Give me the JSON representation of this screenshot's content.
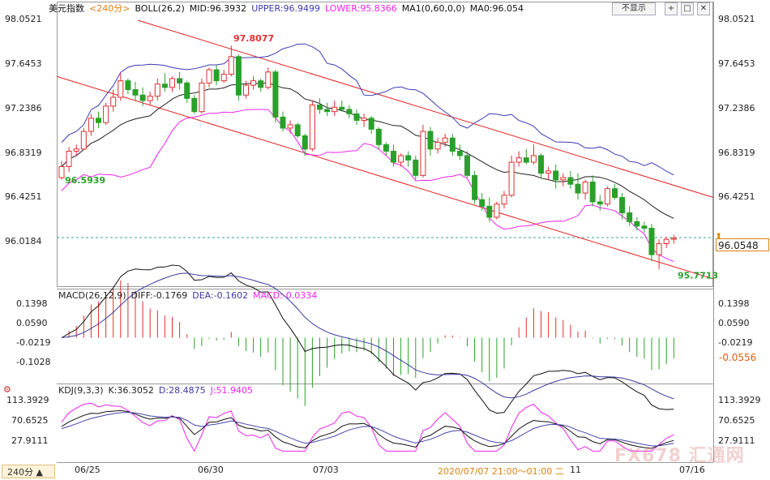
{
  "header": {
    "symbol": "美元指数",
    "period": "<240分>",
    "boll": "BOLL(26,2)",
    "mid": "MID:96.3932",
    "upper": "UPPER:96.9499",
    "lower": "LOWER:95.8366",
    "ma": "MA1(0,60,0,0)",
    "ma0": "MA0:96.054"
  },
  "buttons": {
    "hide": "不显示",
    "b1": "+",
    "b2": "□",
    "b3": "✕"
  },
  "macd_header": {
    "title": "MACD(26,12,9)",
    "diff": "DIFF:-0.1769",
    "dea": "DEA:-0.1602",
    "macd": "MACD:-0.0334"
  },
  "kdj_header": {
    "title": "KDJ(9,3,3)",
    "k": "K:36.3052",
    "d": "D:28.4875",
    "j": "J:51.9405"
  },
  "price_axis": [
    "98.0521",
    "97.6453",
    "97.2386",
    "96.8319",
    "96.4251",
    "96.0184"
  ],
  "macd_axis": [
    "0.1398",
    "0.0590",
    "-0.0219",
    "-0.1028"
  ],
  "macd_axis_right": [
    "0.1398",
    "0.0590",
    "-0.0219"
  ],
  "kdj_axis": [
    "113.3929",
    "70.6525",
    "27.9111"
  ],
  "annotations": {
    "high": "97.8077",
    "low_start": "96.5939",
    "low_end": "95.7713"
  },
  "current_price": "96.0548",
  "macd_current": "-0.0556",
  "timeframe_button": "240分 ▲",
  "x_labels": [
    "06/25",
    "06/30",
    "07/03",
    "2020/07/07 21:00～01:00 二",
    "11",
    "07/16"
  ],
  "watermark": "FX678 汇通网",
  "colors": {
    "up": "#e03030",
    "down": "#2aa02a",
    "upper": "#3b3bb0",
    "mid": "#202020",
    "lower": "#ee22ee",
    "channel": "#e02020",
    "dea": "#3a3aa0",
    "diff": "#111111",
    "k": "#111111",
    "d": "#4444aa",
    "j": "#ee22ee"
  },
  "chart_data": {
    "type": "candlestick",
    "title": "美元指数 240分",
    "ylim": [
      95.7,
      98.1
    ],
    "candles": [
      [
        96.6,
        96.75,
        96.58,
        96.7
      ],
      [
        96.7,
        96.88,
        96.65,
        96.84
      ],
      [
        96.84,
        96.9,
        96.8,
        96.86
      ],
      [
        96.86,
        97.05,
        96.85,
        97.02
      ],
      [
        97.02,
        97.18,
        96.98,
        97.14
      ],
      [
        97.14,
        97.2,
        97.05,
        97.1
      ],
      [
        97.1,
        97.28,
        97.08,
        97.25
      ],
      [
        97.25,
        97.4,
        97.2,
        97.33
      ],
      [
        97.33,
        97.55,
        97.3,
        97.48
      ],
      [
        97.48,
        97.5,
        97.36,
        97.4
      ],
      [
        97.4,
        97.47,
        97.3,
        97.35
      ],
      [
        97.35,
        97.42,
        97.25,
        97.3
      ],
      [
        97.3,
        97.38,
        97.26,
        97.34
      ],
      [
        97.34,
        97.5,
        97.3,
        97.45
      ],
      [
        97.45,
        97.55,
        97.38,
        97.42
      ],
      [
        97.42,
        97.52,
        97.38,
        97.5
      ],
      [
        97.5,
        97.56,
        97.4,
        97.46
      ],
      [
        97.46,
        97.48,
        97.28,
        97.32
      ],
      [
        97.32,
        97.35,
        97.18,
        97.2
      ],
      [
        97.2,
        97.5,
        97.18,
        97.46
      ],
      [
        97.46,
        97.6,
        97.42,
        97.58
      ],
      [
        97.58,
        97.62,
        97.44,
        97.48
      ],
      [
        97.48,
        97.58,
        97.46,
        97.54
      ],
      [
        97.54,
        97.8,
        97.52,
        97.7
      ],
      [
        97.7,
        97.72,
        97.3,
        97.35
      ],
      [
        97.35,
        97.48,
        97.32,
        97.44
      ],
      [
        97.44,
        97.52,
        97.4,
        97.48
      ],
      [
        97.48,
        97.5,
        97.38,
        97.42
      ],
      [
        97.42,
        97.6,
        97.4,
        97.56
      ],
      [
        97.56,
        97.58,
        97.1,
        97.15
      ],
      [
        97.15,
        97.2,
        97.02,
        97.05
      ],
      [
        97.05,
        97.12,
        97.0,
        97.08
      ],
      [
        97.08,
        97.1,
        96.96,
        96.98
      ],
      [
        96.98,
        97.0,
        96.8,
        96.86
      ],
      [
        96.86,
        97.3,
        96.84,
        97.26
      ],
      [
        97.26,
        97.32,
        97.18,
        97.22
      ],
      [
        97.22,
        97.28,
        97.16,
        97.2
      ],
      [
        97.2,
        97.3,
        97.16,
        97.24
      ],
      [
        97.24,
        97.3,
        97.2,
        97.22
      ],
      [
        97.22,
        97.26,
        97.14,
        97.18
      ],
      [
        97.18,
        97.22,
        97.08,
        97.12
      ],
      [
        97.12,
        97.18,
        97.06,
        97.14
      ],
      [
        97.14,
        97.16,
        97.0,
        97.04
      ],
      [
        97.04,
        97.06,
        96.86,
        96.9
      ],
      [
        96.9,
        96.92,
        96.8,
        96.84
      ],
      [
        96.84,
        96.9,
        96.7,
        96.74
      ],
      [
        96.74,
        96.82,
        96.7,
        96.8
      ],
      [
        96.8,
        96.84,
        96.7,
        96.76
      ],
      [
        96.76,
        96.8,
        96.58,
        96.62
      ],
      [
        96.62,
        97.08,
        96.6,
        97.02
      ],
      [
        97.02,
        97.06,
        96.8,
        96.86
      ],
      [
        96.86,
        96.96,
        96.82,
        96.92
      ],
      [
        96.92,
        97.0,
        96.88,
        96.96
      ],
      [
        96.96,
        97.0,
        96.8,
        96.84
      ],
      [
        96.84,
        96.9,
        96.76,
        96.8
      ],
      [
        96.8,
        96.84,
        96.6,
        96.62
      ],
      [
        96.62,
        96.66,
        96.36,
        96.4
      ],
      [
        96.4,
        96.46,
        96.3,
        96.34
      ],
      [
        96.34,
        96.42,
        96.2,
        96.24
      ],
      [
        96.24,
        96.38,
        96.22,
        96.36
      ],
      [
        96.36,
        96.48,
        96.32,
        96.44
      ],
      [
        96.44,
        96.8,
        96.42,
        96.74
      ],
      [
        96.74,
        96.84,
        96.7,
        96.78
      ],
      [
        96.78,
        96.86,
        96.72,
        96.74
      ],
      [
        96.74,
        96.9,
        96.72,
        96.8
      ],
      [
        96.8,
        96.82,
        96.6,
        96.64
      ],
      [
        96.64,
        96.7,
        96.58,
        96.66
      ],
      [
        96.66,
        96.72,
        96.5,
        96.58
      ],
      [
        96.58,
        96.64,
        96.52,
        96.6
      ],
      [
        96.6,
        96.66,
        96.5,
        96.54
      ],
      [
        96.54,
        96.64,
        96.4,
        96.46
      ],
      [
        96.46,
        96.58,
        96.4,
        96.56
      ],
      [
        96.56,
        96.62,
        96.34,
        96.38
      ],
      [
        96.38,
        96.44,
        96.3,
        96.36
      ],
      [
        96.36,
        96.52,
        96.34,
        96.5
      ],
      [
        96.5,
        96.54,
        96.4,
        96.42
      ],
      [
        96.42,
        96.46,
        96.22,
        96.28
      ],
      [
        96.28,
        96.34,
        96.16,
        96.2
      ],
      [
        96.2,
        96.24,
        96.12,
        96.16
      ],
      [
        96.16,
        96.2,
        96.1,
        96.14
      ],
      [
        96.14,
        96.18,
        95.84,
        95.9
      ],
      [
        95.9,
        96.04,
        95.77,
        96.0
      ],
      [
        96.0,
        96.06,
        95.96,
        96.04
      ],
      [
        96.04,
        96.08,
        96.0,
        96.05
      ]
    ],
    "annotations": {
      "high": 97.8077,
      "low_start": 96.5939,
      "low_end": 95.7713
    },
    "current": 96.0548
  }
}
